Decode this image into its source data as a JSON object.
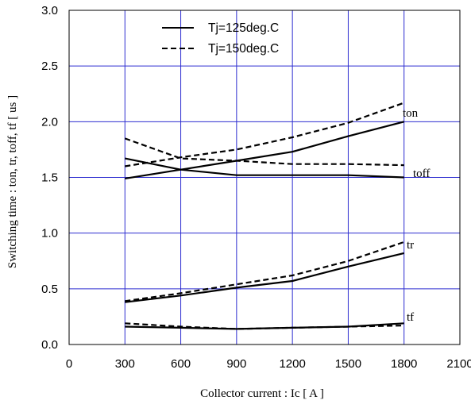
{
  "chart_data": {
    "type": "line",
    "title": "",
    "xlabel": "Collector current  :  Ic  [ A ]",
    "ylabel": "Switching time  :  ton, tr, toff, tf  [ us ]",
    "xlim": [
      0,
      2100
    ],
    "ylim": [
      0,
      3.0
    ],
    "xticks": [
      "0",
      "300",
      "600",
      "900",
      "1200",
      "1500",
      "1800",
      "2100"
    ],
    "yticks": [
      "0.0",
      "0.5",
      "1.0",
      "1.5",
      "2.0",
      "2.5",
      "3.0"
    ],
    "grid": true,
    "grid_color": "#2c2cd0",
    "legend_position": "top-center",
    "legend": [
      {
        "label": "Tj=125deg.C",
        "style": "solid"
      },
      {
        "label": "Tj=150deg.C",
        "style": "dashed"
      }
    ],
    "curve_labels": [
      "ton",
      "toff",
      "tr",
      "tf"
    ],
    "x": [
      300,
      600,
      900,
      1200,
      1500,
      1800
    ],
    "series": [
      {
        "name": "ton",
        "tj": "Tj=125deg.C",
        "style": "solid",
        "values": [
          1.49,
          1.57,
          1.65,
          1.73,
          1.87,
          2.0
        ]
      },
      {
        "name": "ton",
        "tj": "Tj=150deg.C",
        "style": "dashed",
        "values": [
          1.6,
          1.68,
          1.75,
          1.86,
          1.99,
          2.17
        ]
      },
      {
        "name": "toff",
        "tj": "Tj=125deg.C",
        "style": "solid",
        "values": [
          1.67,
          1.57,
          1.52,
          1.52,
          1.52,
          1.5
        ]
      },
      {
        "name": "toff",
        "tj": "Tj=150deg.C",
        "style": "dashed",
        "values": [
          1.85,
          1.67,
          1.65,
          1.62,
          1.62,
          1.61
        ]
      },
      {
        "name": "tr",
        "tj": "Tj=125deg.C",
        "style": "solid",
        "values": [
          0.38,
          0.44,
          0.51,
          0.57,
          0.7,
          0.82
        ]
      },
      {
        "name": "tr",
        "tj": "Tj=150deg.C",
        "style": "dashed",
        "values": [
          0.39,
          0.46,
          0.54,
          0.62,
          0.75,
          0.92
        ]
      },
      {
        "name": "tf",
        "tj": "Tj=125deg.C",
        "style": "solid",
        "values": [
          0.16,
          0.15,
          0.14,
          0.15,
          0.16,
          0.19
        ]
      },
      {
        "name": "tf",
        "tj": "Tj=150deg.C",
        "style": "dashed",
        "values": [
          0.19,
          0.16,
          0.14,
          0.15,
          0.16,
          0.17
        ]
      }
    ]
  }
}
